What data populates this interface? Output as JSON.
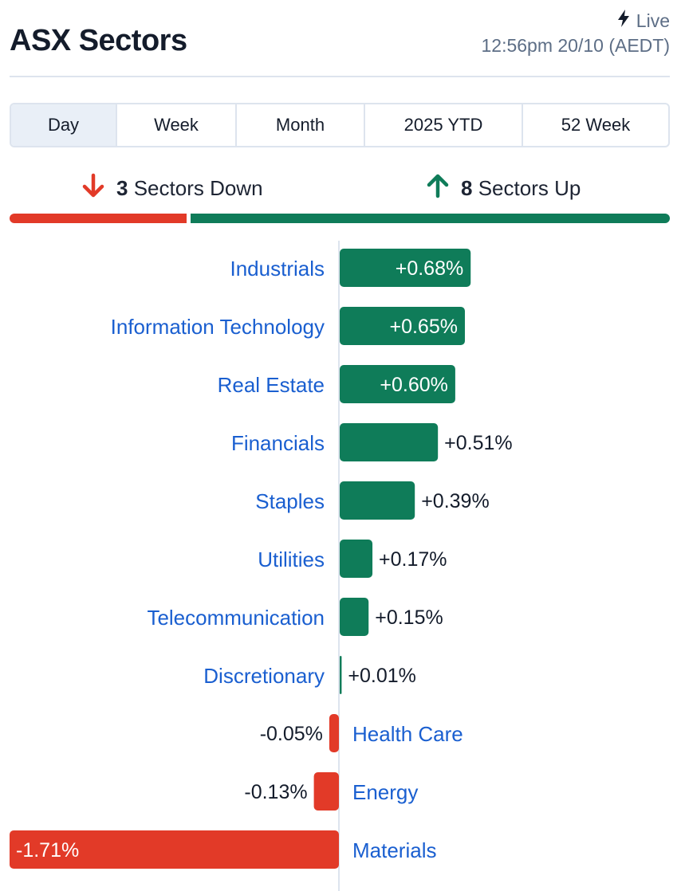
{
  "header": {
    "title": "ASX Sectors",
    "live_label": "Live",
    "timestamp": "12:56pm 20/10 (AEDT)"
  },
  "tabs": [
    {
      "label": "Day",
      "active": true
    },
    {
      "label": "Week",
      "active": false
    },
    {
      "label": "Month",
      "active": false
    },
    {
      "label": "2025 YTD",
      "active": false
    },
    {
      "label": "52 Week",
      "active": false
    }
  ],
  "breadth": {
    "down_count": "3",
    "down_label": "Sectors Down",
    "up_count": "8",
    "up_label": "Sectors Up",
    "down_fraction": 0.27
  },
  "colors": {
    "positive": "#0f7c59",
    "negative": "#e23a28",
    "label": "#1a5fd0",
    "axis": "#dde4ee"
  },
  "icons": {
    "live": "lightning-icon",
    "down": "arrow-down-icon",
    "up": "arrow-up-icon"
  },
  "chart_data": {
    "type": "bar",
    "orientation": "horizontal",
    "categories": [
      "Industrials",
      "Information Technology",
      "Real Estate",
      "Financials",
      "Staples",
      "Utilities",
      "Telecommunication",
      "Discretionary",
      "Health Care",
      "Energy",
      "Materials"
    ],
    "values": [
      0.68,
      0.65,
      0.6,
      0.51,
      0.39,
      0.17,
      0.15,
      0.01,
      -0.05,
      -0.13,
      -1.71
    ],
    "value_labels": [
      "+0.68%",
      "+0.65%",
      "+0.60%",
      "+0.51%",
      "+0.39%",
      "+0.17%",
      "+0.15%",
      "+0.01%",
      "-0.05%",
      "-0.13%",
      "-1.71%"
    ],
    "unit": "%",
    "xlim": [
      -1.71,
      1.71
    ]
  }
}
